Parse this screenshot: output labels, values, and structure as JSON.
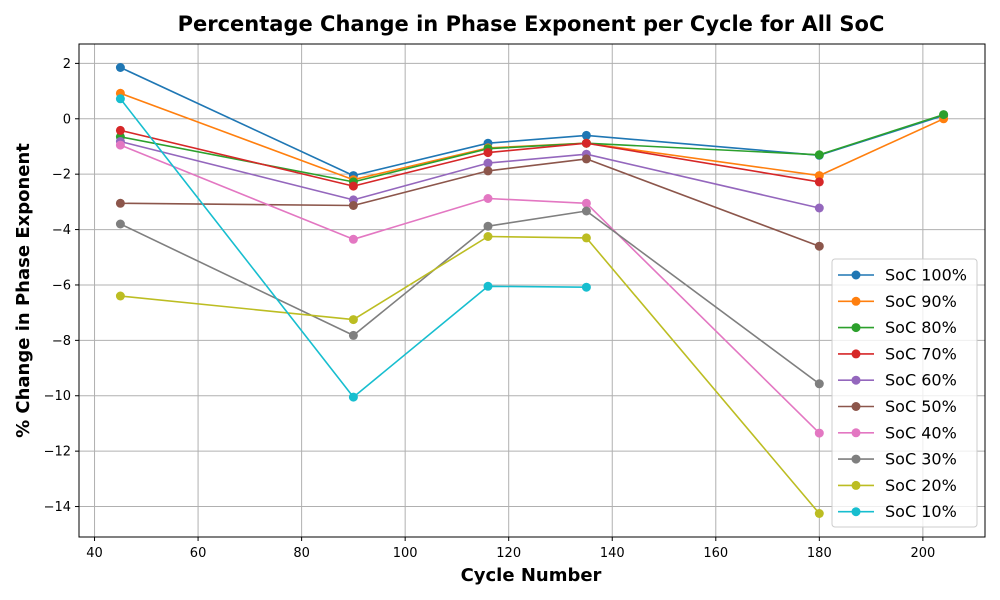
{
  "chart_data": {
    "type": "line",
    "title": "Percentage Change in Phase Exponent per Cycle for All SoC",
    "xlabel": "Cycle Number",
    "ylabel": "% Change in Phase Exponent",
    "xlim": [
      37,
      212
    ],
    "ylim": [
      -15.1,
      2.7
    ],
    "xticks": [
      40,
      60,
      80,
      100,
      120,
      140,
      160,
      180,
      200
    ],
    "yticks": [
      2,
      0,
      -2,
      -4,
      -6,
      -8,
      -10,
      -12,
      -14
    ],
    "xtick_labels": [
      "40",
      "60",
      "80",
      "100",
      "120",
      "140",
      "160",
      "180",
      "200"
    ],
    "ytick_labels": [
      "2",
      "0",
      "−2",
      "−4",
      "−6",
      "−8",
      "−10",
      "−12",
      "−14"
    ],
    "grid": true,
    "legend_position": "lower-right",
    "series": [
      {
        "name": "SoC 100%",
        "color": "#1f77b4",
        "points": [
          [
            45,
            1.85
          ],
          [
            90,
            -2.05
          ],
          [
            116,
            -0.88
          ],
          [
            135,
            -0.6
          ],
          [
            180,
            -1.32
          ],
          [
            204,
            0.12
          ]
        ]
      },
      {
        "name": "SoC 90%",
        "color": "#ff7f0e",
        "points": [
          [
            45,
            0.92
          ],
          [
            90,
            -2.2
          ],
          [
            116,
            -1.05
          ],
          [
            135,
            -0.88
          ],
          [
            180,
            -2.05
          ],
          [
            204,
            0.0
          ]
        ]
      },
      {
        "name": "SoC 80%",
        "color": "#2ca02c",
        "points": [
          [
            45,
            -0.65
          ],
          [
            90,
            -2.28
          ],
          [
            116,
            -1.08
          ],
          [
            135,
            -0.88
          ],
          [
            180,
            -1.3
          ],
          [
            204,
            0.15
          ]
        ]
      },
      {
        "name": "SoC 70%",
        "color": "#d62728",
        "points": [
          [
            45,
            -0.42
          ],
          [
            90,
            -2.43
          ],
          [
            116,
            -1.22
          ],
          [
            135,
            -0.88
          ],
          [
            180,
            -2.28
          ]
        ]
      },
      {
        "name": "SoC 60%",
        "color": "#9467bd",
        "points": [
          [
            45,
            -0.82
          ],
          [
            90,
            -2.93
          ],
          [
            116,
            -1.6
          ],
          [
            135,
            -1.28
          ],
          [
            180,
            -3.22
          ]
        ]
      },
      {
        "name": "SoC 50%",
        "color": "#8c564b",
        "points": [
          [
            45,
            -3.05
          ],
          [
            90,
            -3.13
          ],
          [
            116,
            -1.88
          ],
          [
            135,
            -1.45
          ],
          [
            180,
            -4.6
          ]
        ]
      },
      {
        "name": "SoC 40%",
        "color": "#e377c2",
        "points": [
          [
            45,
            -0.95
          ],
          [
            90,
            -4.35
          ],
          [
            116,
            -2.88
          ],
          [
            135,
            -3.05
          ],
          [
            180,
            -11.35
          ]
        ]
      },
      {
        "name": "SoC 30%",
        "color": "#7f7f7f",
        "points": [
          [
            45,
            -3.8
          ],
          [
            90,
            -7.82
          ],
          [
            116,
            -3.88
          ],
          [
            135,
            -3.33
          ],
          [
            180,
            -9.57
          ]
        ]
      },
      {
        "name": "SoC 20%",
        "color": "#bcbd22",
        "points": [
          [
            45,
            -6.4
          ],
          [
            90,
            -7.25
          ],
          [
            116,
            -4.25
          ],
          [
            135,
            -4.3
          ],
          [
            180,
            -14.25
          ]
        ]
      },
      {
        "name": "SoC 10%",
        "color": "#17becf",
        "points": [
          [
            45,
            0.72
          ],
          [
            90,
            -10.05
          ],
          [
            116,
            -6.05
          ],
          [
            135,
            -6.08
          ]
        ]
      }
    ]
  }
}
